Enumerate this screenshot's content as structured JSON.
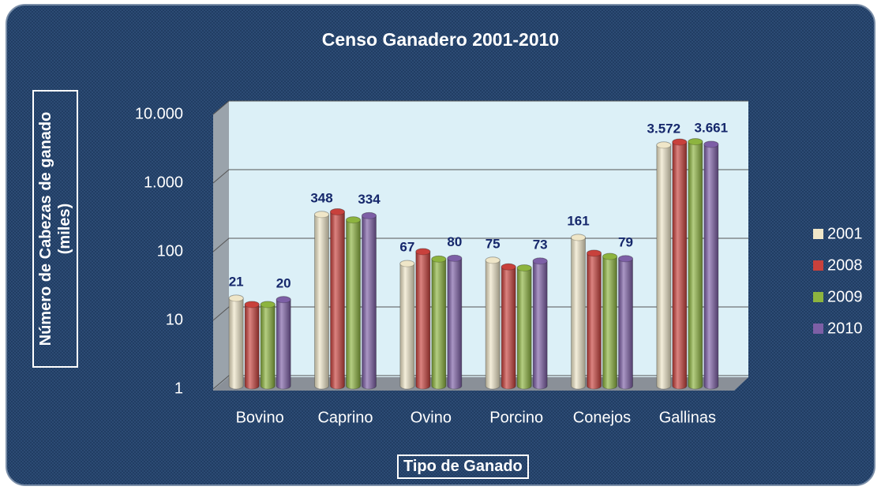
{
  "chart_data": {
    "type": "bar",
    "title": "Censo Ganadero 2001-2010",
    "xlabel": "Tipo de Ganado",
    "ylabel": "Número de Cabezas de ganado (miles)",
    "log": true,
    "grid": true,
    "legend": "right",
    "categories": [
      "Bovino",
      "Caprino",
      "Ovino",
      "Porcino",
      "Conejos",
      "Gallinas"
    ],
    "series": [
      {
        "name": "2001",
        "color": "#efe6c8",
        "values": [
          21,
          348,
          67,
          75,
          161,
          3572
        ],
        "value_labels": [
          "21",
          "348",
          "67",
          "75",
          "161",
          "3.572"
        ]
      },
      {
        "name": "2008",
        "color": "#c8413c",
        "values": [
          17,
          380,
          100,
          60,
          95,
          3950
        ]
      },
      {
        "name": "2009",
        "color": "#8db43f",
        "values": [
          17,
          290,
          78,
          58,
          85,
          4000
        ]
      },
      {
        "name": "2010",
        "color": "#7d5fa6",
        "values": [
          20,
          334,
          80,
          73,
          79,
          3661
        ],
        "value_labels": [
          "20",
          "334",
          "80",
          "73",
          "79",
          "3.661"
        ]
      }
    ],
    "ylim": [
      1,
      10000
    ],
    "yticks": [
      1,
      10,
      100,
      {
        "value": 1000,
        "label": "1.000"
      },
      {
        "value": 10000,
        "label": "10.000"
      }
    ]
  }
}
